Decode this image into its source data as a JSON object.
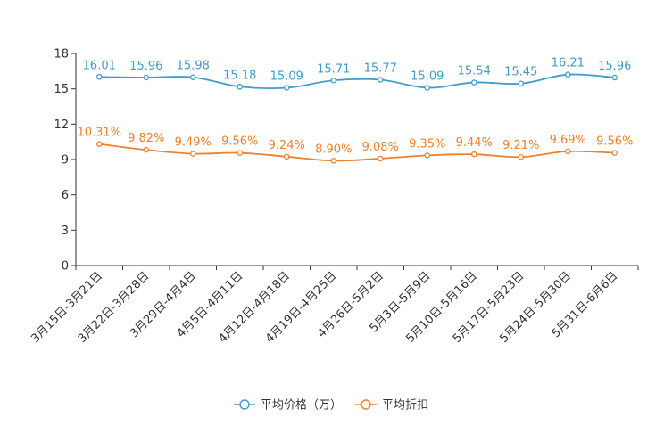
{
  "chart_data": {
    "type": "line",
    "title": "",
    "xlabel": "",
    "ylabel": "",
    "ylim": [
      0,
      18
    ],
    "yticks": [
      0,
      3,
      6,
      9,
      12,
      15,
      18
    ],
    "grid": false,
    "legend_position": "bottom-center",
    "categories": [
      "3月15日-3月21日",
      "3月22日-3月28日",
      "3月29日-4月4日",
      "4月5日-4月11日",
      "4月12日-4月18日",
      "4月19日-4月25日",
      "4月26日-5月2日",
      "5月3日-5月9日",
      "5月10日-5月16日",
      "5月17日-5月23日",
      "5月24日-5月30日",
      "5月31日-6月6日"
    ],
    "series": [
      {
        "name": "平均价格（万）",
        "color": "#3d9ccc",
        "values": [
          16.01,
          15.96,
          15.98,
          15.18,
          15.09,
          15.71,
          15.77,
          15.09,
          15.54,
          15.45,
          16.21,
          15.96
        ],
        "labels": [
          "16.01",
          "15.96",
          "15.98",
          "15.18",
          "15.09",
          "15.71",
          "15.77",
          "15.09",
          "15.54",
          "15.45",
          "16.21",
          "15.96"
        ]
      },
      {
        "name": "平均折扣",
        "color": "#f0802a",
        "values": [
          10.31,
          9.82,
          9.49,
          9.56,
          9.24,
          8.9,
          9.08,
          9.35,
          9.44,
          9.21,
          9.69,
          9.56
        ],
        "labels": [
          "10.31%",
          "9.82%",
          "9.49%",
          "9.56%",
          "9.24%",
          "8.90%",
          "9.08%",
          "9.35%",
          "9.44%",
          "9.21%",
          "9.69%",
          "9.56%"
        ]
      }
    ]
  }
}
